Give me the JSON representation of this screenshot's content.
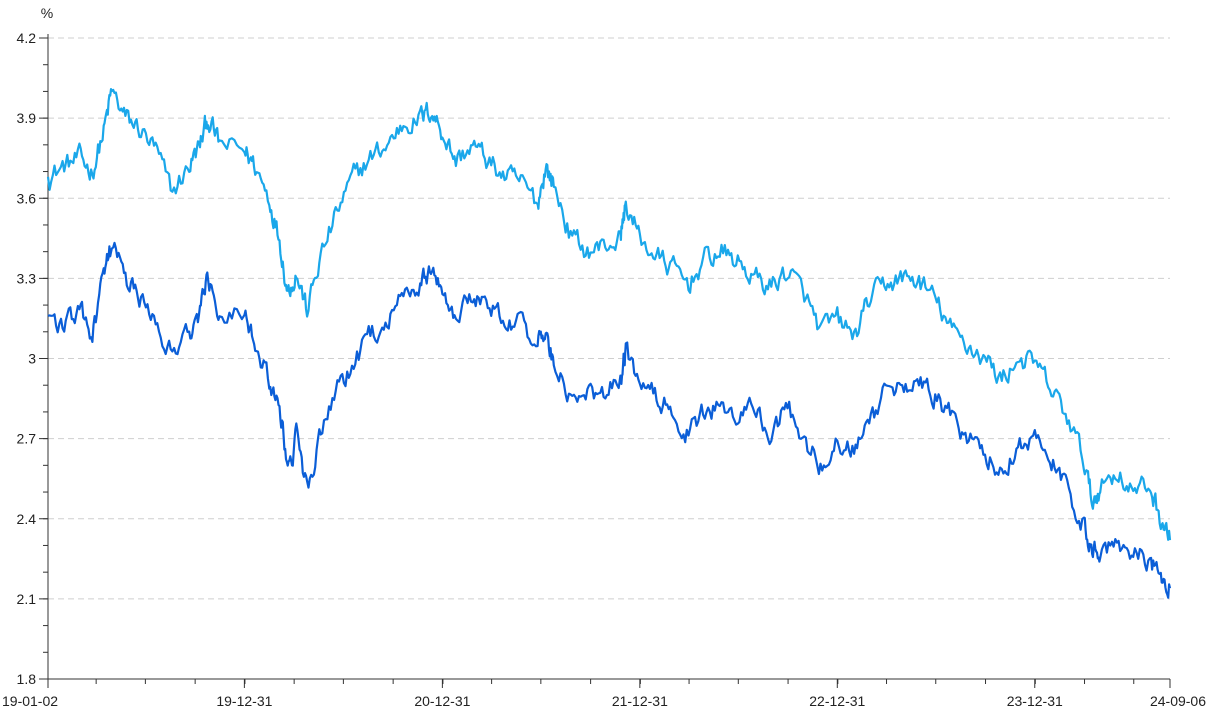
{
  "chart_data": {
    "type": "line",
    "unit_label": "%",
    "y_range": [
      1.8,
      4.2
    ],
    "y_ticks": [
      "1.8",
      "2.1",
      "2.4",
      "2.7",
      "3",
      "3.3",
      "3.6",
      "3.9",
      "4.2"
    ],
    "x_range": [
      "2019-01-02",
      "2024-09-06"
    ],
    "x_ticks": [
      {
        "date": "2019-01-02",
        "label": "19-01-02"
      },
      {
        "date": "2019-12-31",
        "label": "19-12-31"
      },
      {
        "date": "2020-12-31",
        "label": "20-12-31"
      },
      {
        "date": "2021-12-31",
        "label": "21-12-31"
      },
      {
        "date": "2022-12-31",
        "label": "22-12-31"
      },
      {
        "date": "2023-12-31",
        "label": "23-12-31"
      },
      {
        "date": "2024-09-06",
        "label": "24-09-06"
      }
    ],
    "grid": "horizontal dashed",
    "legend": "none",
    "series": [
      {
        "color": "#1aa7ea",
        "points": [
          [
            "2019-01-02",
            3.68
          ],
          [
            "2019-02-01",
            3.72
          ],
          [
            "2019-03-01",
            3.75
          ],
          [
            "2019-03-25",
            3.7
          ],
          [
            "2019-04-15",
            3.85
          ],
          [
            "2019-04-30",
            4.0
          ],
          [
            "2019-05-25",
            3.9
          ],
          [
            "2019-06-20",
            3.86
          ],
          [
            "2019-07-20",
            3.78
          ],
          [
            "2019-08-20",
            3.62
          ],
          [
            "2019-09-20",
            3.72
          ],
          [
            "2019-10-10",
            3.8
          ],
          [
            "2019-10-25",
            3.9
          ],
          [
            "2019-11-15",
            3.8
          ],
          [
            "2019-12-31",
            3.78
          ],
          [
            "2020-01-20",
            3.72
          ],
          [
            "2020-02-15",
            3.6
          ],
          [
            "2020-03-05",
            3.45
          ],
          [
            "2020-03-20",
            3.25
          ],
          [
            "2020-04-05",
            3.32
          ],
          [
            "2020-04-25",
            3.18
          ],
          [
            "2020-05-20",
            3.38
          ],
          [
            "2020-06-20",
            3.55
          ],
          [
            "2020-07-20",
            3.68
          ],
          [
            "2020-08-20",
            3.75
          ],
          [
            "2020-09-20",
            3.8
          ],
          [
            "2020-10-20",
            3.88
          ],
          [
            "2020-11-20",
            3.9
          ],
          [
            "2020-12-10",
            3.93
          ],
          [
            "2020-12-31",
            3.85
          ],
          [
            "2021-01-25",
            3.74
          ],
          [
            "2021-02-25",
            3.8
          ],
          [
            "2021-03-25",
            3.74
          ],
          [
            "2021-04-25",
            3.68
          ],
          [
            "2021-05-25",
            3.66
          ],
          [
            "2021-06-25",
            3.58
          ],
          [
            "2021-07-10",
            3.72
          ],
          [
            "2021-07-25",
            3.65
          ],
          [
            "2021-08-25",
            3.46
          ],
          [
            "2021-09-25",
            3.4
          ],
          [
            "2021-10-25",
            3.42
          ],
          [
            "2021-11-25",
            3.45
          ],
          [
            "2021-12-05",
            3.58
          ],
          [
            "2021-12-31",
            3.45
          ],
          [
            "2022-01-31",
            3.38
          ],
          [
            "2022-02-28",
            3.34
          ],
          [
            "2022-03-31",
            3.28
          ],
          [
            "2022-04-30",
            3.37
          ],
          [
            "2022-05-31",
            3.4
          ],
          [
            "2022-06-30",
            3.36
          ],
          [
            "2022-07-31",
            3.3
          ],
          [
            "2022-08-31",
            3.27
          ],
          [
            "2022-09-30",
            3.33
          ],
          [
            "2022-10-31",
            3.24
          ],
          [
            "2022-11-30",
            3.1
          ],
          [
            "2022-12-31",
            3.15
          ],
          [
            "2023-01-31",
            3.08
          ],
          [
            "2023-02-28",
            3.22
          ],
          [
            "2023-03-31",
            3.28
          ],
          [
            "2023-04-30",
            3.3
          ],
          [
            "2023-05-31",
            3.29
          ],
          [
            "2023-06-30",
            3.22
          ],
          [
            "2023-07-31",
            3.1
          ],
          [
            "2023-08-31",
            3.05
          ],
          [
            "2023-09-30",
            3.0
          ],
          [
            "2023-10-31",
            2.92
          ],
          [
            "2023-11-30",
            3.0
          ],
          [
            "2023-12-31",
            2.98
          ],
          [
            "2024-01-31",
            2.88
          ],
          [
            "2024-02-29",
            2.78
          ],
          [
            "2024-03-31",
            2.62
          ],
          [
            "2024-04-15",
            2.46
          ],
          [
            "2024-04-30",
            2.52
          ],
          [
            "2024-05-31",
            2.58
          ],
          [
            "2024-06-30",
            2.5
          ],
          [
            "2024-07-31",
            2.52
          ],
          [
            "2024-08-20",
            2.4
          ],
          [
            "2024-09-06",
            2.32
          ]
        ]
      },
      {
        "color": "#0b5ed7",
        "points": [
          [
            "2019-01-02",
            3.16
          ],
          [
            "2019-02-01",
            3.12
          ],
          [
            "2019-03-01",
            3.18
          ],
          [
            "2019-03-25",
            3.08
          ],
          [
            "2019-04-15",
            3.3
          ],
          [
            "2019-04-30",
            3.42
          ],
          [
            "2019-05-25",
            3.3
          ],
          [
            "2019-06-20",
            3.22
          ],
          [
            "2019-07-20",
            3.15
          ],
          [
            "2019-08-20",
            3.02
          ],
          [
            "2019-09-20",
            3.1
          ],
          [
            "2019-10-10",
            3.18
          ],
          [
            "2019-10-25",
            3.3
          ],
          [
            "2019-11-15",
            3.18
          ],
          [
            "2019-12-31",
            3.18
          ],
          [
            "2020-01-20",
            3.08
          ],
          [
            "2020-02-15",
            2.9
          ],
          [
            "2020-03-05",
            2.85
          ],
          [
            "2020-03-20",
            2.55
          ],
          [
            "2020-04-05",
            2.7
          ],
          [
            "2020-04-25",
            2.52
          ],
          [
            "2020-05-20",
            2.7
          ],
          [
            "2020-06-20",
            2.88
          ],
          [
            "2020-07-20",
            2.98
          ],
          [
            "2020-08-20",
            3.08
          ],
          [
            "2020-09-20",
            3.15
          ],
          [
            "2020-10-20",
            3.22
          ],
          [
            "2020-11-20",
            3.28
          ],
          [
            "2020-12-10",
            3.33
          ],
          [
            "2020-12-31",
            3.28
          ],
          [
            "2021-01-25",
            3.15
          ],
          [
            "2021-02-25",
            3.25
          ],
          [
            "2021-03-25",
            3.2
          ],
          [
            "2021-04-25",
            3.16
          ],
          [
            "2021-05-25",
            3.12
          ],
          [
            "2021-06-25",
            3.05
          ],
          [
            "2021-07-10",
            3.1
          ],
          [
            "2021-07-25",
            2.98
          ],
          [
            "2021-08-25",
            2.85
          ],
          [
            "2021-09-25",
            2.86
          ],
          [
            "2021-10-25",
            2.88
          ],
          [
            "2021-11-25",
            2.92
          ],
          [
            "2021-12-05",
            3.02
          ],
          [
            "2021-12-31",
            2.9
          ],
          [
            "2022-01-31",
            2.85
          ],
          [
            "2022-02-28",
            2.8
          ],
          [
            "2022-03-31",
            2.72
          ],
          [
            "2022-04-30",
            2.8
          ],
          [
            "2022-05-31",
            2.82
          ],
          [
            "2022-06-30",
            2.78
          ],
          [
            "2022-07-31",
            2.82
          ],
          [
            "2022-08-31",
            2.72
          ],
          [
            "2022-09-30",
            2.82
          ],
          [
            "2022-10-31",
            2.7
          ],
          [
            "2022-11-30",
            2.6
          ],
          [
            "2022-12-31",
            2.68
          ],
          [
            "2023-01-31",
            2.66
          ],
          [
            "2023-02-28",
            2.75
          ],
          [
            "2023-03-31",
            2.88
          ],
          [
            "2023-04-30",
            2.92
          ],
          [
            "2023-05-31",
            2.9
          ],
          [
            "2023-06-30",
            2.86
          ],
          [
            "2023-07-31",
            2.78
          ],
          [
            "2023-08-31",
            2.7
          ],
          [
            "2023-09-30",
            2.64
          ],
          [
            "2023-10-31",
            2.58
          ],
          [
            "2023-11-30",
            2.68
          ],
          [
            "2023-12-31",
            2.7
          ],
          [
            "2024-01-31",
            2.62
          ],
          [
            "2024-02-29",
            2.5
          ],
          [
            "2024-03-31",
            2.38
          ],
          [
            "2024-04-15",
            2.3
          ],
          [
            "2024-04-30",
            2.28
          ],
          [
            "2024-05-31",
            2.32
          ],
          [
            "2024-06-30",
            2.28
          ],
          [
            "2024-07-31",
            2.25
          ],
          [
            "2024-08-20",
            2.16
          ],
          [
            "2024-09-06",
            2.14
          ]
        ]
      }
    ]
  }
}
